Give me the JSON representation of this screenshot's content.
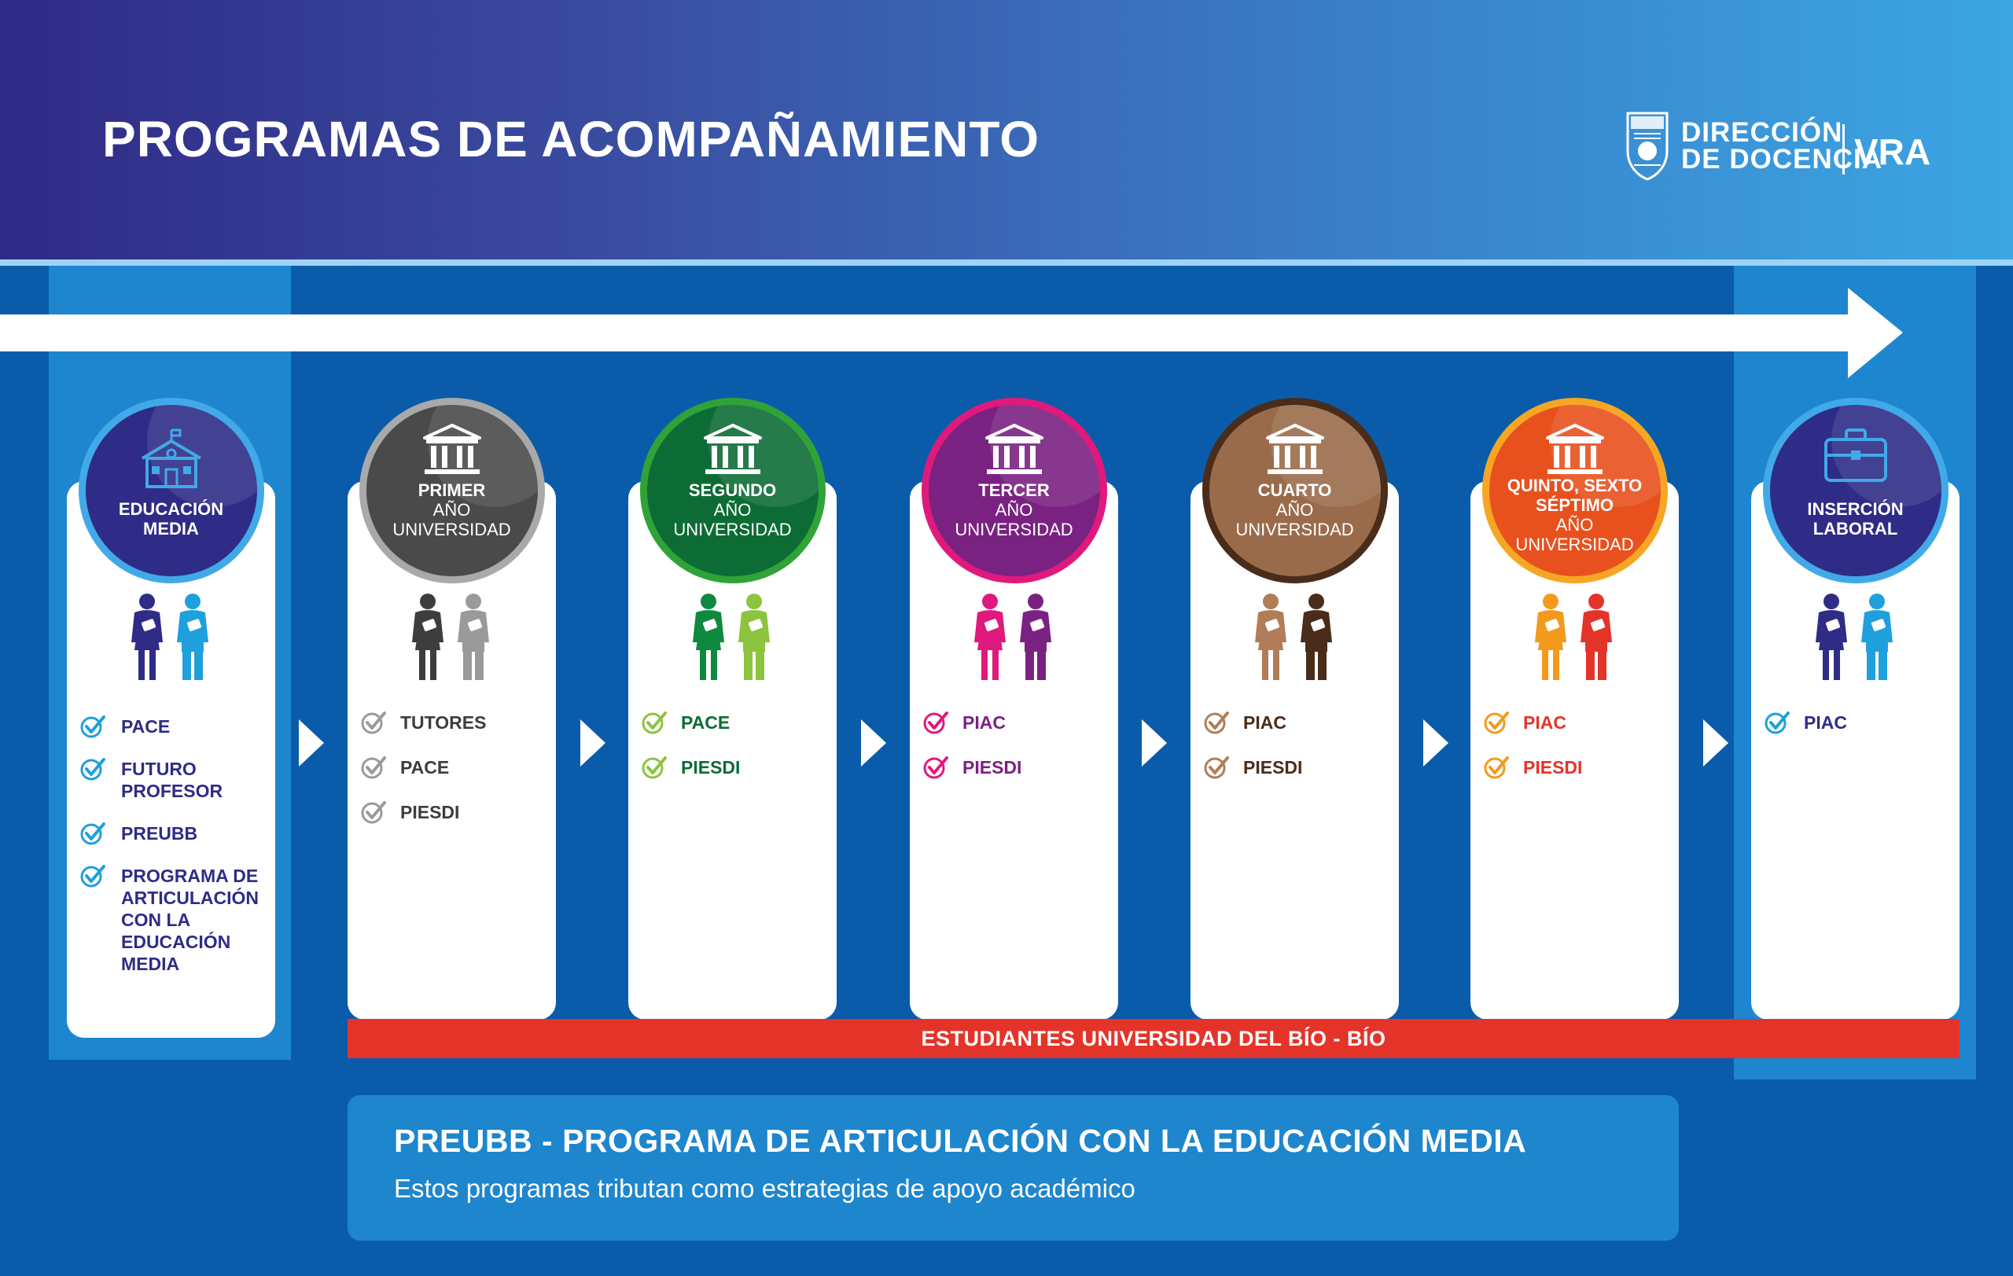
{
  "header": {
    "title": "PROGRAMAS DE ACOMPAÑAMIENTO"
  },
  "logo": {
    "line1": "DIRECCIÓN",
    "line2": "DE DOCENCIA",
    "vra": "VRA"
  },
  "stages": [
    {
      "id": "educacion-media",
      "bold1": "EDUCACIÓN",
      "bold2": "MEDIA",
      "light1": "",
      "light2": "",
      "icon": "school-icon",
      "ring": "#41a9e8",
      "fill": "#2e2c86",
      "p1": "#2e2c86",
      "p2": "#1ea0dc",
      "check": "#1ea0dc",
      "text": "#2e2c86",
      "items": [
        "PACE",
        "FUTURO PROFESOR",
        "PREUBB",
        "PROGRAMA DE ARTICULACIÓN CON LA EDUCACIÓN MEDIA"
      ]
    },
    {
      "id": "primer-ano",
      "bold1": "PRIMER",
      "bold2": "",
      "light1": "AÑO",
      "light2": "UNIVERSIDAD",
      "icon": "university-icon",
      "ring": "#a9a9a9",
      "fill": "#4a4a4a",
      "p1": "#3d3d3d",
      "p2": "#9a9a9a",
      "check": "#9a9a9a",
      "text": "#3d3d3d",
      "items": [
        "TUTORES",
        "PACE",
        "PIESDI"
      ]
    },
    {
      "id": "segundo-ano",
      "bold1": "SEGUNDO",
      "bold2": "",
      "light1": "AÑO",
      "light2": "UNIVERSIDAD",
      "icon": "university-icon",
      "ring": "#2fa337",
      "fill": "#0d6c35",
      "p1": "#0d8a3d",
      "p2": "#8cc43d",
      "check": "#8cc43d",
      "text": "#0d6c35",
      "items": [
        "PACE",
        "PIESDI"
      ]
    },
    {
      "id": "tercer-ano",
      "bold1": "TERCER",
      "bold2": "",
      "light1": "AÑO",
      "light2": "UNIVERSIDAD",
      "icon": "university-icon",
      "ring": "#e0197d",
      "fill": "#7a2282",
      "p1": "#e0197d",
      "p2": "#7a2282",
      "check": "#e0197d",
      "text": "#7a2282",
      "items": [
        "PIAC",
        "PIESDI"
      ]
    },
    {
      "id": "cuarto-ano",
      "bold1": "CUARTO",
      "bold2": "",
      "light1": "AÑO",
      "light2": "UNIVERSIDAD",
      "icon": "university-icon",
      "ring": "#4a2c1a",
      "fill": "#9a6b4b",
      "p1": "#b07d58",
      "p2": "#4a2c1a",
      "check": "#b07d58",
      "text": "#4a2c1a",
      "items": [
        "PIAC",
        "PIESDI"
      ]
    },
    {
      "id": "quinto-ano",
      "bold1": "QUINTO, SEXTO",
      "bold2": "SÉPTIMO",
      "light1": "AÑO",
      "light2": "UNIVERSIDAD",
      "icon": "university-icon",
      "ring": "#f6a623",
      "fill": "#e8511e",
      "p1": "#f39a1c",
      "p2": "#e4342a",
      "check": "#f39a1c",
      "text": "#e4342a",
      "items": [
        "PIAC",
        "PIESDI"
      ]
    },
    {
      "id": "insercion-laboral",
      "bold1": "INSERCIÓN",
      "bold2": "LABORAL",
      "light1": "",
      "light2": "",
      "icon": "briefcase-icon",
      "ring": "#41a9e8",
      "fill": "#2e2c86",
      "p1": "#2e2c86",
      "p2": "#1ea0dc",
      "check": "#1ea0dc",
      "text": "#2e2c86",
      "items": [
        "PIAC"
      ]
    }
  ],
  "banner": "ESTUDIANTES UNIVERSIDAD DEL BÍO - BÍO",
  "info": {
    "title": "PREUBB - PROGRAMA DE ARTICULACIÓN CON LA EDUCACIÓN MEDIA",
    "subtitle": "Estos programas tributan como estrategias de apoyo académico"
  }
}
